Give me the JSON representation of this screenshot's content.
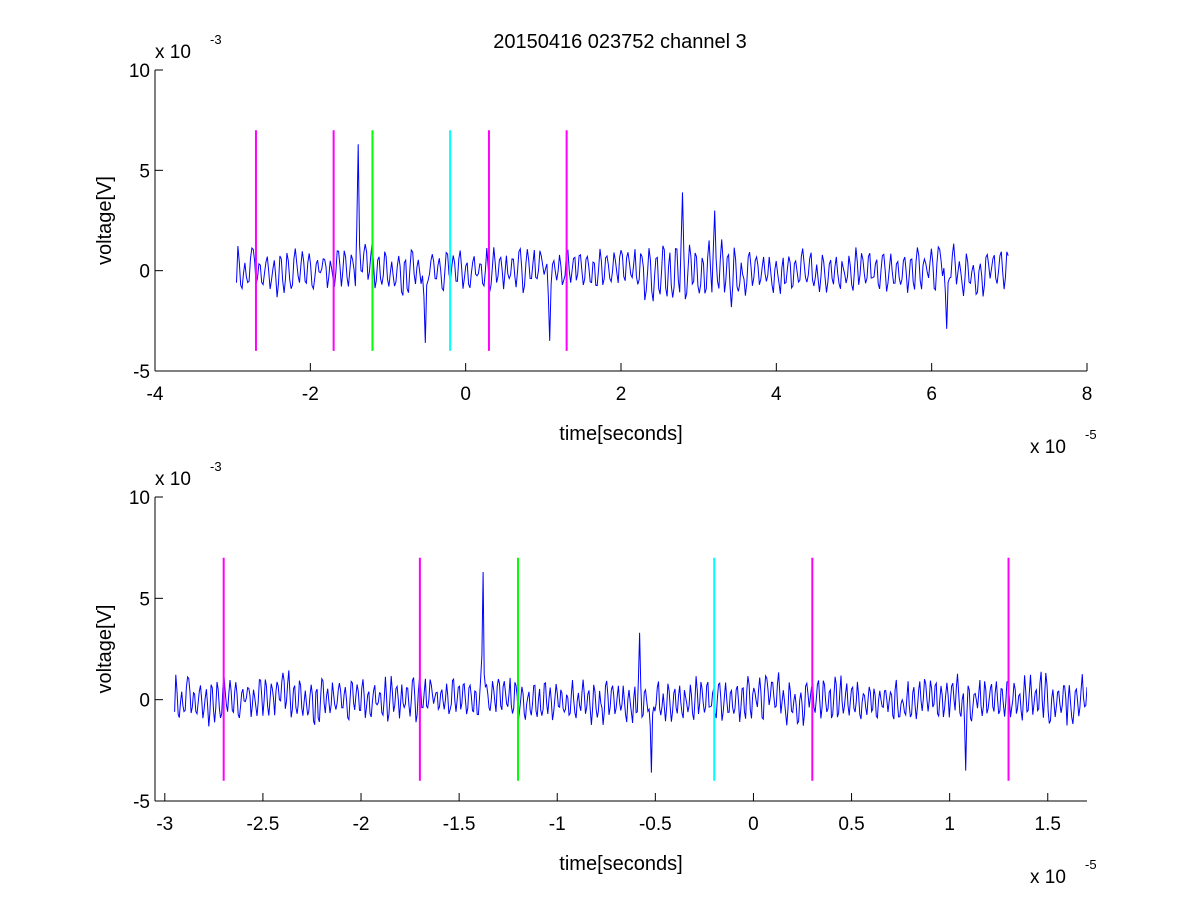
{
  "title": "20150416 023752 channel 3",
  "chart_data": [
    {
      "type": "line",
      "title": "20150416 023752 channel 3",
      "xlabel": "time[seconds]",
      "ylabel": "voltage[V]",
      "x_multiplier": "x 10",
      "x_exponent": "-5",
      "y_multiplier": "x 10",
      "y_exponent": "-3",
      "xlim": [
        -4,
        8
      ],
      "ylim": [
        -5,
        10
      ],
      "xticks": [
        -4,
        -2,
        0,
        2,
        4,
        6,
        8
      ],
      "xtick_labels": [
        "-4",
        "-2",
        "0",
        "2",
        "4",
        "6",
        "8"
      ],
      "yticks": [
        -5,
        0,
        5,
        10
      ],
      "ytick_labels": [
        "-5",
        "0",
        "5",
        "10"
      ],
      "grid": false,
      "series": [
        {
          "color": "#0000ff",
          "x_range": [
            -2.95,
            7.0
          ],
          "y_approx_range": [
            -3.6,
            6.3
          ],
          "notable_points": [
            {
              "x": -1.38,
              "y": 6.3
            },
            {
              "x": 2.8,
              "y": 3.9
            },
            {
              "x": 3.2,
              "y": 3.0
            },
            {
              "x": -0.52,
              "y": -3.6
            },
            {
              "x": 1.08,
              "y": -3.5
            },
            {
              "x": 6.2,
              "y": -2.9
            }
          ]
        }
      ],
      "markers": [
        {
          "x": -2.7,
          "y": [
            -4,
            7
          ],
          "color": "#ff00ff"
        },
        {
          "x": -1.7,
          "y": [
            -4,
            7
          ],
          "color": "#ff00ff"
        },
        {
          "x": -1.2,
          "y": [
            -4,
            7
          ],
          "color": "#00ff00"
        },
        {
          "x": -0.2,
          "y": [
            -4,
            7
          ],
          "color": "#00ffff"
        },
        {
          "x": 0.3,
          "y": [
            -4,
            7
          ],
          "color": "#ff00ff"
        },
        {
          "x": 1.3,
          "y": [
            -4,
            7
          ],
          "color": "#ff00ff"
        }
      ]
    },
    {
      "type": "line",
      "xlabel": "time[seconds]",
      "ylabel": "voltage[V]",
      "x_multiplier": "x 10",
      "x_exponent": "-5",
      "y_multiplier": "x 10",
      "y_exponent": "-3",
      "xlim": [
        -3.05,
        1.7
      ],
      "ylim": [
        -5,
        10
      ],
      "xticks": [
        -3,
        -2.5,
        -2,
        -1.5,
        -1,
        -0.5,
        0,
        0.5,
        1,
        1.5
      ],
      "xtick_labels": [
        "-3",
        "-2.5",
        "-2",
        "-1.5",
        "-1",
        "-0.5",
        "0",
        "0.5",
        "1",
        "1.5"
      ],
      "yticks": [
        -5,
        0,
        5,
        10
      ],
      "ytick_labels": [
        "-5",
        "0",
        "5",
        "10"
      ],
      "grid": false,
      "series": [
        {
          "color": "#0000ff",
          "x_range": [
            -2.95,
            1.7
          ],
          "y_approx_range": [
            -3.6,
            6.3
          ],
          "notable_points": [
            {
              "x": -1.38,
              "y": 6.3
            },
            {
              "x": -0.52,
              "y": -3.6
            },
            {
              "x": 1.08,
              "y": -3.5
            },
            {
              "x": -0.58,
              "y": 3.3
            }
          ]
        }
      ],
      "markers": [
        {
          "x": -2.7,
          "y": [
            -4,
            7
          ],
          "color": "#ff00ff"
        },
        {
          "x": -1.7,
          "y": [
            -4,
            7
          ],
          "color": "#ff00ff"
        },
        {
          "x": -1.2,
          "y": [
            -4,
            7
          ],
          "color": "#00ff00"
        },
        {
          "x": -0.2,
          "y": [
            -4,
            7
          ],
          "color": "#00ffff"
        },
        {
          "x": 0.3,
          "y": [
            -4,
            7
          ],
          "color": "#ff00ff"
        },
        {
          "x": 1.3,
          "y": [
            -4,
            7
          ],
          "color": "#ff00ff"
        }
      ]
    }
  ]
}
